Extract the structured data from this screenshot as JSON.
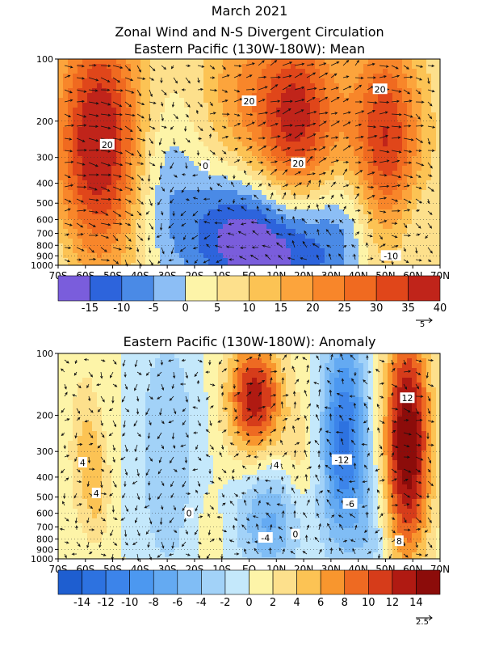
{
  "figure": {
    "title": "March 2021",
    "subtitle": "Zonal Wind and N-S Divergent Circulation",
    "panels": [
      {
        "name": "Eastern Pacific (130W-180W): Mean"
      },
      {
        "name": "Eastern Pacific (130W-180W): Anomaly"
      }
    ]
  },
  "chart_data": [
    {
      "type": "heatmap",
      "title": "Eastern Pacific (130W-180W): Mean",
      "x_ticks": [
        "70S",
        "60S",
        "50S",
        "40S",
        "30S",
        "20S",
        "10S",
        "EQ",
        "10N",
        "20N",
        "30N",
        "40N",
        "50N",
        "60N",
        "70N"
      ],
      "y_ticks": [
        "100",
        "200",
        "300",
        "400",
        "500",
        "600",
        "700",
        "800",
        "900",
        "1000"
      ],
      "y_scale": "log (pressure, hPa)",
      "ylim": [
        1000,
        100
      ],
      "colorbar": {
        "labels": [
          "-15",
          "-10",
          "-5",
          "0",
          "5",
          "10",
          "15",
          "20",
          "25",
          "30",
          "35",
          "40"
        ],
        "colors": [
          "#7a5ddc",
          "#2d64dc",
          "#4a8ae6",
          "#8cbef5",
          "#fdf4a8",
          "#fde08c",
          "#fcc354",
          "#fca43c",
          "#f8862a",
          "#f06a20",
          "#e0461a",
          "#c0241a"
        ],
        "levels": [
          -20,
          -15,
          -10,
          -5,
          0,
          5,
          10,
          15,
          20,
          25,
          30,
          35,
          40
        ]
      },
      "contour_labels": [
        {
          "text": "20",
          "lat": 48,
          "p": 140
        },
        {
          "text": "20",
          "lat": 0,
          "p": 160
        },
        {
          "text": "20",
          "lat": 18,
          "p": 320
        },
        {
          "text": "20",
          "lat": -52,
          "p": 260
        },
        {
          "text": "0",
          "lat": -16,
          "p": 330
        },
        {
          "text": "-10",
          "lat": 52,
          "p": 900
        }
      ],
      "features": [
        {
          "kind": "westerly jet",
          "lat": -55,
          "p": 250,
          "value": 35
        },
        {
          "kind": "westerly jet",
          "lat": 17,
          "p": 200,
          "value": 35
        },
        {
          "kind": "westerly jet",
          "lat": 50,
          "p": 250,
          "value": 30
        },
        {
          "kind": "easterly core",
          "lat": 12,
          "p": 820,
          "value": -15
        }
      ],
      "vector_ref": "5"
    },
    {
      "type": "heatmap",
      "title": "Eastern Pacific (130W-180W): Anomaly",
      "x_ticks": [
        "70S",
        "60S",
        "50S",
        "40S",
        "30S",
        "20S",
        "10S",
        "EQ",
        "10N",
        "20N",
        "30N",
        "40N",
        "50N",
        "60N",
        "70N"
      ],
      "y_ticks": [
        "100",
        "200",
        "300",
        "400",
        "500",
        "600",
        "700",
        "800",
        "900",
        "1000"
      ],
      "y_scale": "log (pressure, hPa)",
      "ylim": [
        1000,
        100
      ],
      "colorbar": {
        "labels": [
          "-14",
          "-12",
          "-10",
          "-8",
          "-6",
          "-4",
          "-2",
          "0",
          "2",
          "4",
          "6",
          "8",
          "10",
          "12",
          "14"
        ],
        "colors": [
          "#1e5ed0",
          "#2d72e0",
          "#3c84ea",
          "#4c98f0",
          "#64aaf2",
          "#80bdf5",
          "#a2d2f8",
          "#c4e8fb",
          "#fdf4a8",
          "#fde08c",
          "#fcc354",
          "#f8962e",
          "#ee6a22",
          "#d63c1a",
          "#b01a12",
          "#8c0c0a"
        ],
        "levels": [
          -16,
          -14,
          -12,
          -10,
          -8,
          -6,
          -4,
          -2,
          0,
          2,
          4,
          6,
          8,
          10,
          12,
          14,
          16
        ]
      },
      "contour_labels": [
        {
          "text": "12",
          "lat": 58,
          "p": 165
        },
        {
          "text": "4",
          "lat": -61,
          "p": 340
        },
        {
          "text": "4",
          "lat": -56,
          "p": 480
        },
        {
          "text": "-12",
          "lat": 34,
          "p": 330
        },
        {
          "text": "-6",
          "lat": 37,
          "p": 540
        },
        {
          "text": "-4",
          "lat": 6,
          "p": 790
        },
        {
          "text": "0",
          "lat": -22,
          "p": 600
        },
        {
          "text": "0",
          "lat": 17,
          "p": 760
        },
        {
          "text": "4",
          "lat": 10,
          "p": 350
        },
        {
          "text": "8",
          "lat": 55,
          "p": 820
        }
      ],
      "features": [
        {
          "kind": "positive anomaly",
          "lat": 2,
          "p": 160,
          "value": 12
        },
        {
          "kind": "positive anomaly",
          "lat": 58,
          "p": 270,
          "value": 15
        },
        {
          "kind": "negative anomaly",
          "lat": 35,
          "p": 250,
          "value": -12
        },
        {
          "kind": "negative anomaly",
          "lat": 8,
          "p": 620,
          "value": -6
        },
        {
          "kind": "negative anomaly",
          "lat": -30,
          "p": 300,
          "value": -4
        },
        {
          "kind": "positive anomaly",
          "lat": -60,
          "p": 300,
          "value": 4
        }
      ],
      "vector_ref": "2.5"
    }
  ]
}
